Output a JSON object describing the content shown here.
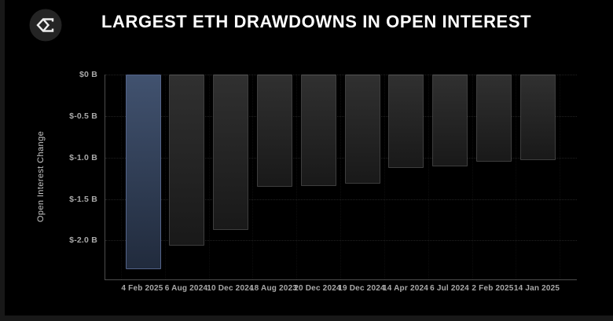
{
  "header": {
    "title": "LARGEST ETH DRAWDOWNS IN OPEN INTEREST",
    "logo": "sigma-diamond-logo"
  },
  "chart_data": {
    "type": "bar",
    "title": "LARGEST ETH DRAWDOWNS IN OPEN INTEREST",
    "xlabel": "",
    "ylabel": "Open Interest Change",
    "unit": "billions USD",
    "categories": [
      "4 Feb 2025",
      "6 Aug 2024",
      "10 Dec 2024",
      "18 Aug 2023",
      "20 Dec 2024",
      "19 Dec 2024",
      "14 Apr 2024",
      "6 Jul 2024",
      "2 Feb 2025",
      "14 Jan 2025"
    ],
    "values": [
      -2.35,
      -2.06,
      -1.87,
      -1.35,
      -1.34,
      -1.32,
      -1.13,
      -1.11,
      -1.05,
      -1.03
    ],
    "ylim": [
      -2.47,
      0
    ],
    "yticks": [
      {
        "value": 0,
        "label": "$0 B"
      },
      {
        "value": -0.5,
        "label": "$-0.5 B"
      },
      {
        "value": -1.0,
        "label": "$-1.0 B"
      },
      {
        "value": -1.5,
        "label": "$-1.5 B"
      },
      {
        "value": -2.0,
        "label": "$-2.0 B"
      }
    ],
    "grid": true,
    "legend": false,
    "highlight_index": 0,
    "colors": {
      "background": "#000000",
      "edge_strip": "#181818",
      "title": "#ffffff",
      "tick_text": "#a9a9a9",
      "ylabel_text": "#c6c6c6",
      "axis_line": "#4d4d4d",
      "grid_line": "rgba(255,255,255,0.13)",
      "grid_line_vertical": "rgba(255,255,255,0.05)",
      "bar_top": "#303030",
      "bar_bottom": "#191919",
      "bar_border": "#3e3e3e",
      "bar_border_top": "#555555",
      "highlight_top": "#41526f",
      "highlight_bottom": "#212b3d",
      "highlight_border": "#54648a",
      "logo_background": "#242424",
      "logo_glyph": "#ededed"
    }
  }
}
